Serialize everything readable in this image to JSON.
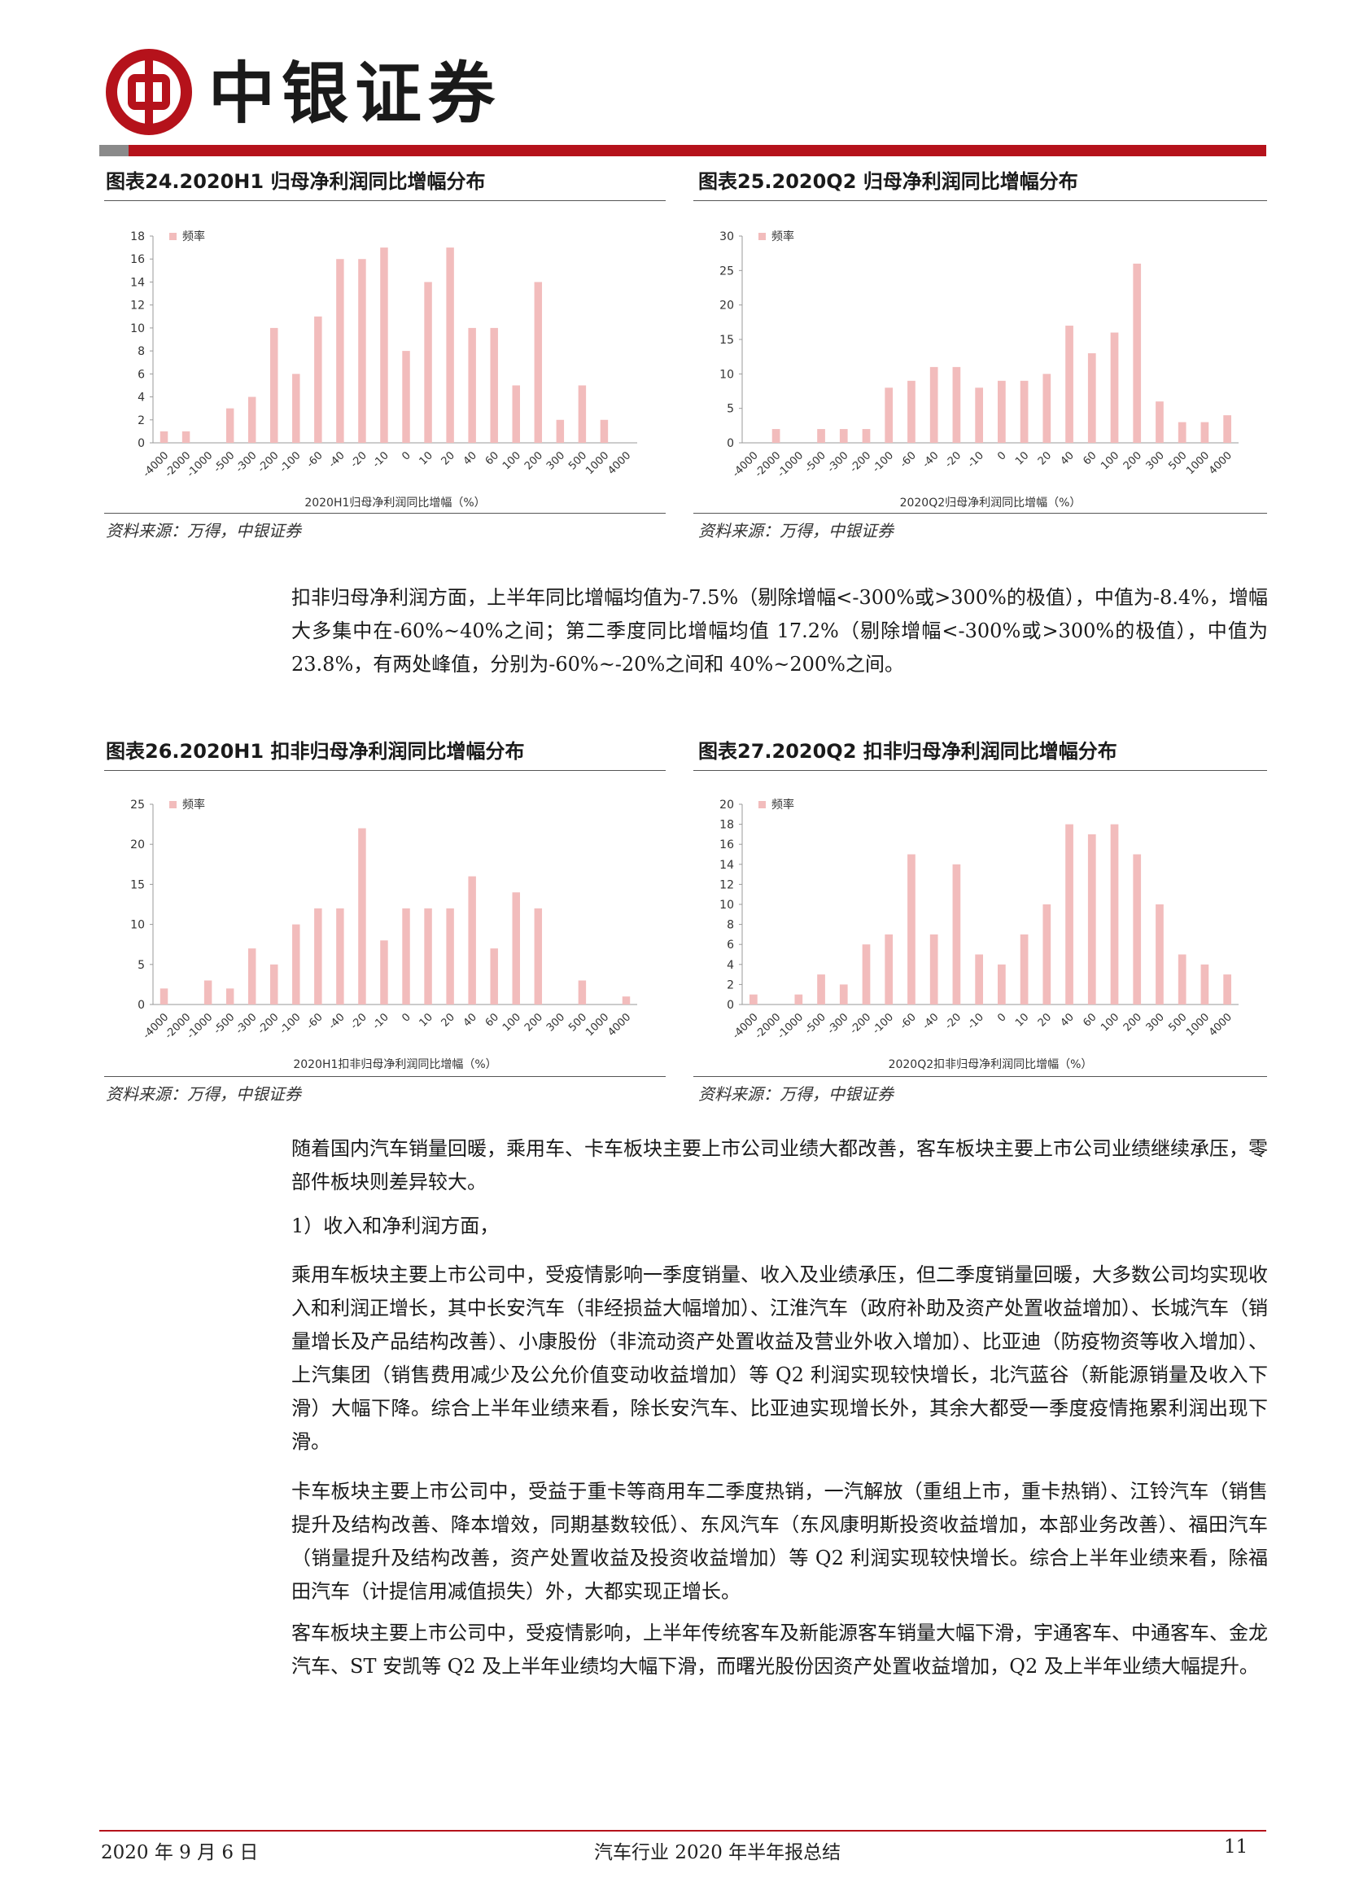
{
  "header": {
    "brand_name": "中银证券",
    "logo_icon": "bank-of-china-logo",
    "brand_color": "#b5121b"
  },
  "figures": [
    {
      "title": "图表24.2020H1 归母净利润同比增幅分布",
      "source": "资料来源：万得，中银证券"
    },
    {
      "title": "图表25.2020Q2 归母净利润同比增幅分布",
      "source": "资料来源：万得，中银证券"
    },
    {
      "title": "图表26.2020H1 扣非归母净利润同比增幅分布",
      "source": "资料来源：万得，中银证券"
    },
    {
      "title": "图表27.2020Q2 扣非归母净利润同比增幅分布",
      "source": "资料来源：万得，中银证券"
    }
  ],
  "chart_data": [
    {
      "type": "bar",
      "bar_color": "#f2bcbc",
      "categories": [
        "-4000",
        "-2000",
        "-1000",
        "-500",
        "-300",
        "-200",
        "-100",
        "-60",
        "-40",
        "-20",
        "-10",
        "0",
        "10",
        "20",
        "40",
        "60",
        "100",
        "200",
        "300",
        "500",
        "1000",
        "4000"
      ],
      "series": [
        {
          "name": "频率",
          "values": [
            1,
            1,
            0,
            3,
            4,
            10,
            6,
            11,
            16,
            16,
            17,
            8,
            14,
            17,
            10,
            10,
            5,
            14,
            2,
            5,
            2,
            0
          ]
        }
      ],
      "xlabel": "2020H1归母净利润同比增幅（%）",
      "ylim": [
        0,
        18
      ],
      "yticks": [
        0,
        2,
        4,
        6,
        8,
        10,
        12,
        14,
        16,
        18
      ],
      "legend": "top-left"
    },
    {
      "type": "bar",
      "bar_color": "#f2bcbc",
      "categories": [
        "-4000",
        "-2000",
        "-1000",
        "-500",
        "-300",
        "-200",
        "-100",
        "-60",
        "-40",
        "-20",
        "-10",
        "0",
        "10",
        "20",
        "40",
        "60",
        "100",
        "200",
        "300",
        "500",
        "1000",
        "4000"
      ],
      "series": [
        {
          "name": "频率",
          "values": [
            0,
            2,
            0,
            2,
            2,
            2,
            8,
            9,
            11,
            11,
            8,
            9,
            9,
            10,
            17,
            13,
            16,
            26,
            6,
            3,
            3,
            4
          ]
        }
      ],
      "xlabel": "2020Q2归母净利润同比增幅（%）",
      "ylim": [
        0,
        30
      ],
      "yticks": [
        0,
        5,
        10,
        15,
        20,
        25,
        30
      ],
      "legend": "top-left"
    },
    {
      "type": "bar",
      "bar_color": "#f2bcbc",
      "categories": [
        "-4000",
        "-2000",
        "-1000",
        "-500",
        "-300",
        "-200",
        "-100",
        "-60",
        "-40",
        "-20",
        "-10",
        "0",
        "10",
        "20",
        "40",
        "60",
        "100",
        "200",
        "300",
        "500",
        "1000",
        "4000"
      ],
      "series": [
        {
          "name": "频率",
          "values": [
            2,
            0,
            3,
            2,
            7,
            5,
            10,
            12,
            12,
            22,
            8,
            12,
            12,
            12,
            16,
            7,
            14,
            12,
            0,
            3,
            0,
            1
          ]
        }
      ],
      "xlabel": "2020H1扣非归母净利润同比增幅（%）",
      "ylim": [
        0,
        25
      ],
      "yticks": [
        0,
        5,
        10,
        15,
        20,
        25
      ],
      "legend": "top-left"
    },
    {
      "type": "bar",
      "bar_color": "#f2bcbc",
      "categories": [
        "-4000",
        "-2000",
        "-1000",
        "-500",
        "-300",
        "-200",
        "-100",
        "-60",
        "-40",
        "-20",
        "-10",
        "0",
        "10",
        "20",
        "40",
        "60",
        "100",
        "200",
        "300",
        "500",
        "1000",
        "4000"
      ],
      "series": [
        {
          "name": "频率",
          "values": [
            1,
            0,
            1,
            3,
            2,
            6,
            7,
            15,
            7,
            14,
            5,
            4,
            7,
            10,
            18,
            17,
            18,
            15,
            10,
            5,
            4,
            3
          ]
        }
      ],
      "xlabel": "2020Q2扣非归母净利润同比增幅（%）",
      "ylim": [
        0,
        20
      ],
      "yticks": [
        0,
        2,
        4,
        6,
        8,
        10,
        12,
        14,
        16,
        18,
        20
      ],
      "legend": "top-left"
    }
  ],
  "body": {
    "p1": "扣非归母净利润方面，上半年同比增幅均值为-7.5%（剔除增幅<-300%或>300%的极值），中值为-8.4%，增幅大多集中在-60%~40%之间；第二季度同比增幅均值 17.2%（剔除增幅<-300%或>300%的极值），中值为 23.8%，有两处峰值，分别为-60%~-20%之间和 40%~200%之间。",
    "p2": "随着国内汽车销量回暖，乘用车、卡车板块主要上市公司业绩大都改善，客车板块主要上市公司业绩继续承压，零部件板块则差异较大。",
    "p3": "1）收入和净利润方面，",
    "p4": "乘用车板块主要上市公司中，受疫情影响一季度销量、收入及业绩承压，但二季度销量回暖，大多数公司均实现收入和利润正增长，其中长安汽车（非经损益大幅增加）、江淮汽车（政府补助及资产处置收益增加）、长城汽车（销量增长及产品结构改善）、小康股份（非流动资产处置收益及营业外收入增加）、比亚迪（防疫物资等收入增加）、上汽集团（销售费用减少及公允价值变动收益增加）等 Q2 利润实现较快增长，北汽蓝谷（新能源销量及收入下滑）大幅下降。综合上半年业绩来看，除长安汽车、比亚迪实现增长外，其余大都受一季度疫情拖累利润出现下滑。",
    "p5": "卡车板块主要上市公司中，受益于重卡等商用车二季度热销，一汽解放（重组上市，重卡热销）、江铃汽车（销售提升及结构改善、降本增效，同期基数较低）、东风汽车（东风康明斯投资收益增加，本部业务改善）、福田汽车（销量提升及结构改善，资产处置收益及投资收益增加）等 Q2 利润实现较快增长。综合上半年业绩来看，除福田汽车（计提信用减值损失）外，大都实现正增长。",
    "p6": "客车板块主要上市公司中，受疫情影响，上半年传统客车及新能源客车销量大幅下滑，宇通客车、中通客车、金龙汽车、ST 安凯等 Q2 及上半年业绩均大幅下滑，而曙光股份因资产处置收益增加，Q2 及上半年业绩大幅提升。"
  },
  "footer": {
    "date": "2020 年 9 月 6 日",
    "title": "汽车行业 2020 年半年报总结",
    "page": "11"
  }
}
